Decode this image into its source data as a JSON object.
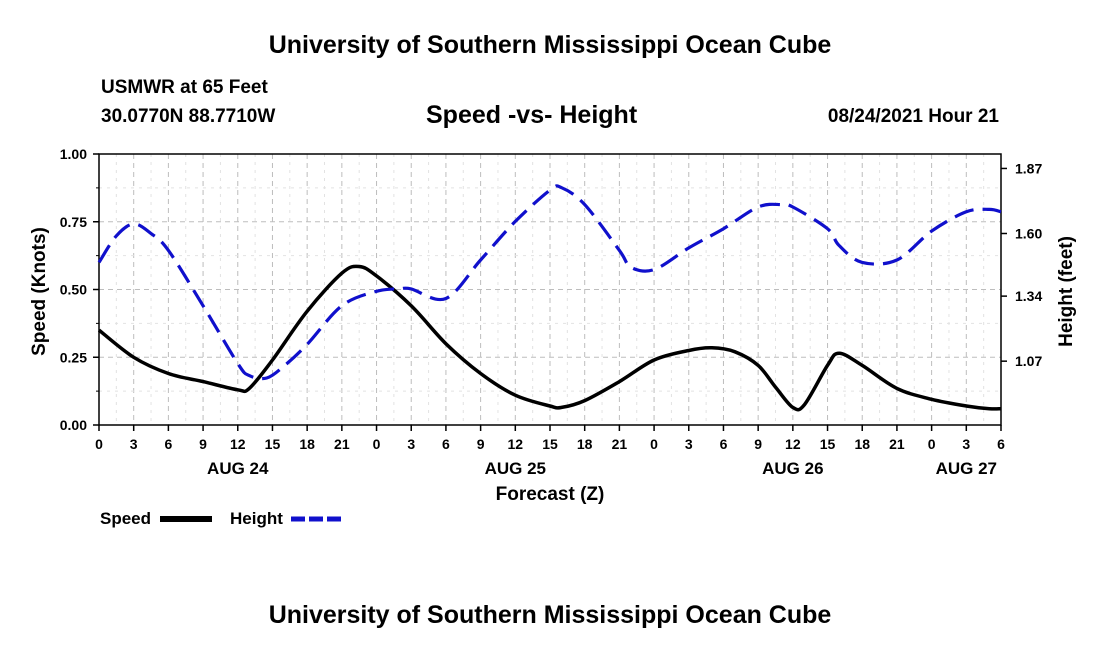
{
  "header": {
    "title": "University of Southern Mississippi Ocean Cube",
    "station_name": "USMWR at 65 Feet",
    "coordinates": "30.0770N  88.7710W",
    "date": "08/24/2021 Hour 21"
  },
  "footer": {
    "title": "University of Southern Mississippi Ocean Cube"
  },
  "chart_data": {
    "type": "line",
    "title": "Speed -vs- Height",
    "xlabel": "Forecast (Z)",
    "ylabel_left": "Speed (Knots)",
    "ylabel_right": "Height (feet)",
    "x_range_hours": [
      0,
      78
    ],
    "x_ticks": [
      {
        "hour": 0,
        "label": "0"
      },
      {
        "hour": 3,
        "label": "3"
      },
      {
        "hour": 6,
        "label": "6"
      },
      {
        "hour": 9,
        "label": "9"
      },
      {
        "hour": 12,
        "label": "12"
      },
      {
        "hour": 15,
        "label": "15"
      },
      {
        "hour": 18,
        "label": "18"
      },
      {
        "hour": 21,
        "label": "21"
      },
      {
        "hour": 24,
        "label": "0"
      },
      {
        "hour": 27,
        "label": "3"
      },
      {
        "hour": 30,
        "label": "6"
      },
      {
        "hour": 33,
        "label": "9"
      },
      {
        "hour": 36,
        "label": "12"
      },
      {
        "hour": 39,
        "label": "15"
      },
      {
        "hour": 42,
        "label": "18"
      },
      {
        "hour": 45,
        "label": "21"
      },
      {
        "hour": 48,
        "label": "0"
      },
      {
        "hour": 51,
        "label": "3"
      },
      {
        "hour": 54,
        "label": "6"
      },
      {
        "hour": 57,
        "label": "9"
      },
      {
        "hour": 60,
        "label": "12"
      },
      {
        "hour": 63,
        "label": "15"
      },
      {
        "hour": 66,
        "label": "18"
      },
      {
        "hour": 69,
        "label": "21"
      },
      {
        "hour": 72,
        "label": "0"
      },
      {
        "hour": 75,
        "label": "3"
      },
      {
        "hour": 78,
        "label": "6"
      }
    ],
    "date_labels": [
      {
        "hour": 12,
        "label": "AUG 24"
      },
      {
        "hour": 36,
        "label": "AUG 25"
      },
      {
        "hour": 60,
        "label": "AUG 26"
      },
      {
        "hour": 75,
        "label": "AUG 27"
      }
    ],
    "y_left": {
      "min": 0,
      "max": 1.0,
      "ticks": [
        "0.00",
        "0.25",
        "0.50",
        "0.75",
        "1.00"
      ]
    },
    "y_right": {
      "min": 0.805,
      "max": 1.93,
      "ticks": [
        "1.07",
        "1.34",
        "1.60",
        "1.87"
      ]
    },
    "legend": [
      {
        "name": "Speed",
        "style": "solid",
        "color": "#000000"
      },
      {
        "name": "Height",
        "style": "dashed",
        "color": "#1010cc"
      }
    ],
    "series": [
      {
        "name": "Speed",
        "axis": "left",
        "color": "#000000",
        "x": [
          0,
          3,
          6,
          9,
          12,
          13,
          15,
          18,
          21,
          22.5,
          24,
          27,
          30,
          33,
          36,
          39,
          40,
          42,
          45,
          48,
          51,
          53,
          55,
          57,
          58.5,
          60,
          61,
          63,
          64,
          66,
          69,
          72,
          75,
          77,
          78
        ],
        "y": [
          0.35,
          0.25,
          0.19,
          0.16,
          0.13,
          0.135,
          0.24,
          0.42,
          0.56,
          0.585,
          0.55,
          0.44,
          0.3,
          0.19,
          0.11,
          0.07,
          0.065,
          0.09,
          0.16,
          0.24,
          0.275,
          0.285,
          0.27,
          0.22,
          0.14,
          0.065,
          0.075,
          0.22,
          0.265,
          0.22,
          0.135,
          0.095,
          0.07,
          0.06,
          0.06
        ]
      },
      {
        "name": "Height",
        "axis": "right",
        "color": "#1010cc",
        "x": [
          0,
          1.5,
          3,
          4.5,
          6,
          9,
          12,
          13,
          14.5,
          16,
          18,
          21,
          24,
          26,
          27,
          30,
          33,
          36,
          39,
          40,
          42,
          45,
          46,
          48,
          51,
          54,
          57,
          59,
          60,
          63,
          64,
          66,
          69,
          72,
          75,
          77,
          78
        ],
        "y": [
          1.48,
          1.59,
          1.64,
          1.6,
          1.53,
          1.3,
          1.06,
          1.01,
          1.0,
          1.05,
          1.14,
          1.3,
          1.36,
          1.37,
          1.37,
          1.33,
          1.49,
          1.65,
          1.78,
          1.79,
          1.72,
          1.53,
          1.46,
          1.45,
          1.54,
          1.62,
          1.71,
          1.72,
          1.71,
          1.62,
          1.55,
          1.48,
          1.49,
          1.61,
          1.69,
          1.7,
          1.69
        ]
      }
    ]
  }
}
